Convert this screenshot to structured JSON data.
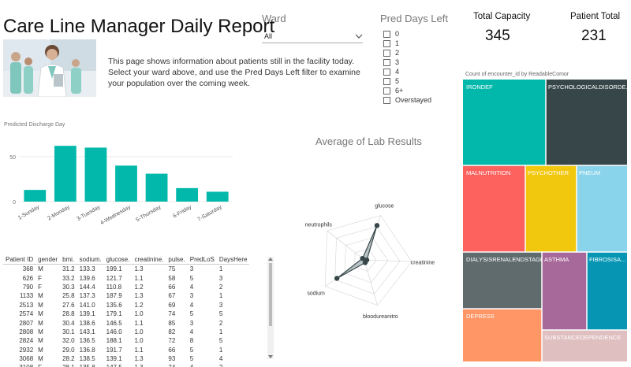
{
  "report": {
    "title": "Care Line Manager Daily Report",
    "description": "This page shows information about patients still in the facility today.  Select your ward above, and use the Pred Days Left filter to examine your population over the coming week."
  },
  "ward_filter": {
    "label": "Ward",
    "selected": "All"
  },
  "pred_days_filter": {
    "label": "Pred Days Left",
    "options": [
      "0",
      "1",
      "2",
      "3",
      "4",
      "5",
      "6+",
      "Overstayed"
    ]
  },
  "cards": {
    "total_capacity": {
      "label": "Total Capacity",
      "value": "345"
    },
    "patient_total": {
      "label": "Patient Total",
      "value": "231"
    }
  },
  "treemap": {
    "label": "Count of encounter_id by ReadableComor",
    "tiles": [
      {
        "name": "IRONDEF",
        "color": "#01B8AA"
      },
      {
        "name": "PSYCHOLOGICALDISORDE...",
        "color": "#374649"
      },
      {
        "name": "MALNUTRITION",
        "color": "#FD625E"
      },
      {
        "name": "PSYCHOTHER",
        "color": "#F2C80F"
      },
      {
        "name": "PNEUM",
        "color": "#8AD4EB"
      },
      {
        "name": "DIALYSISRENALENDSTAGE",
        "color": "#5F6B6D"
      },
      {
        "name": "ASTHMA",
        "color": "#A66999"
      },
      {
        "name": "FIBROSISA...",
        "color": "#0696B4"
      },
      {
        "name": "DEPRESS",
        "color": "#FE9666"
      },
      {
        "name": "SUBSTANCEDEPENDENCE",
        "color": "#DFBFBF"
      }
    ]
  },
  "bar_chart": {
    "title": "Predicted Discharge Day",
    "chart_data": {
      "type": "bar",
      "categories": [
        "1-Sunday",
        "2-Monday",
        "3-Tuesday",
        "4-Wednesday",
        "5-Thursday",
        "6-Friday",
        "7-Saturday"
      ],
      "values": [
        13,
        62,
        60,
        40,
        31,
        15,
        11
      ],
      "ylim": [
        0,
        70
      ],
      "yticks": [
        0,
        50
      ],
      "color": "#01B8AA"
    }
  },
  "radar_chart": {
    "title": "Average of Lab Results",
    "chart_data": {
      "type": "radar",
      "axes": [
        "glucose",
        "creatinine",
        "bloodureanitro",
        "sodium",
        "neutrophils"
      ],
      "values": [
        155,
        1.2,
        12,
        140,
        9
      ],
      "scale_max": 200,
      "color": "#374649"
    }
  },
  "table": {
    "columns": [
      "Patient ID",
      "gender",
      "bmi.",
      "sodium.",
      "glucose.",
      "creatinine.",
      "pulse.",
      "PredLoS",
      "DaysHere"
    ],
    "rows": [
      [
        "368",
        "M",
        "31.2",
        "133.3",
        "199.1",
        "1.3",
        "75",
        "3",
        "1"
      ],
      [
        "626",
        "F",
        "33.2",
        "139.6",
        "121.7",
        "1.1",
        "58",
        "5",
        "3"
      ],
      [
        "790",
        "F",
        "30.3",
        "144.4",
        "110.8",
        "1.2",
        "66",
        "4",
        "2"
      ],
      [
        "1133",
        "M",
        "25.8",
        "137.3",
        "187.9",
        "1.3",
        "67",
        "3",
        "1"
      ],
      [
        "2513",
        "M",
        "27.6",
        "141.0",
        "135.6",
        "1.2",
        "69",
        "4",
        "3"
      ],
      [
        "2574",
        "M",
        "28.8",
        "139.1",
        "179.1",
        "1.0",
        "74",
        "5",
        "5"
      ],
      [
        "2807",
        "M",
        "30.4",
        "138.6",
        "146.5",
        "1.1",
        "85",
        "3",
        "2"
      ],
      [
        "2808",
        "M",
        "30.1",
        "143.1",
        "146.0",
        "1.0",
        "82",
        "4",
        "1"
      ],
      [
        "2824",
        "M",
        "32.0",
        "136.5",
        "188.1",
        "1.0",
        "72",
        "8",
        "5"
      ],
      [
        "2932",
        "M",
        "29.0",
        "136.8",
        "191.7",
        "1.1",
        "66",
        "5",
        "1"
      ],
      [
        "3068",
        "M",
        "28.2",
        "138.5",
        "139.1",
        "1.3",
        "93",
        "5",
        "4"
      ],
      [
        "3108",
        "F",
        "28.1",
        "135.8",
        "147.5",
        "1.3",
        "74",
        "4",
        "2"
      ]
    ]
  }
}
